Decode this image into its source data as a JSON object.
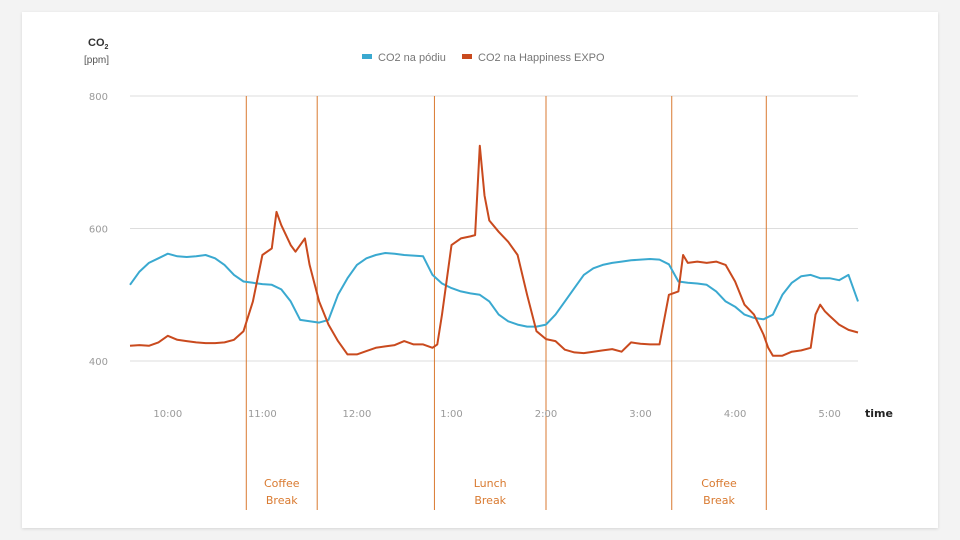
{
  "chart_data": {
    "type": "line",
    "ylabel": "CO",
    "ylabel_sub": "2",
    "yunit": "[ppm]",
    "xlabel": "time",
    "ylim": [
      400,
      800
    ],
    "xlim_hours": [
      9.6,
      17.3
    ],
    "yticks": [
      {
        "value": 400,
        "label": "400"
      },
      {
        "value": 600,
        "label": "600"
      },
      {
        "value": 800,
        "label": "800"
      }
    ],
    "xticks": [
      {
        "value": 10,
        "label": "10:00"
      },
      {
        "value": 11,
        "label": "11:00"
      },
      {
        "value": 12,
        "label": "12:00"
      },
      {
        "value": 13,
        "label": "1:00"
      },
      {
        "value": 14,
        "label": "2:00"
      },
      {
        "value": 15,
        "label": "3:00"
      },
      {
        "value": 16,
        "label": "4:00"
      },
      {
        "value": 17,
        "label": "5:00"
      }
    ],
    "legend_position": "top-center",
    "breaks": [
      {
        "start": 10.83,
        "end": 11.58,
        "line1": "Coffee",
        "line2": "Break"
      },
      {
        "start": 12.82,
        "end": 14.0,
        "line1": "Lunch",
        "line2": "Break"
      },
      {
        "start": 15.33,
        "end": 16.33,
        "line1": "Coffee",
        "line2": "Break"
      }
    ],
    "series": [
      {
        "name": "CO2 na pódiu",
        "color": "#3aa9d0",
        "points": [
          [
            9.6,
            515
          ],
          [
            9.7,
            535
          ],
          [
            9.8,
            548
          ],
          [
            9.9,
            555
          ],
          [
            10.0,
            562
          ],
          [
            10.1,
            558
          ],
          [
            10.2,
            557
          ],
          [
            10.3,
            558
          ],
          [
            10.4,
            560
          ],
          [
            10.5,
            555
          ],
          [
            10.6,
            545
          ],
          [
            10.7,
            530
          ],
          [
            10.8,
            520
          ],
          [
            10.9,
            518
          ],
          [
            11.0,
            516
          ],
          [
            11.1,
            515
          ],
          [
            11.2,
            508
          ],
          [
            11.3,
            490
          ],
          [
            11.4,
            462
          ],
          [
            11.5,
            460
          ],
          [
            11.6,
            458
          ],
          [
            11.7,
            462
          ],
          [
            11.8,
            500
          ],
          [
            11.9,
            525
          ],
          [
            12.0,
            545
          ],
          [
            12.1,
            555
          ],
          [
            12.2,
            560
          ],
          [
            12.3,
            563
          ],
          [
            12.4,
            562
          ],
          [
            12.5,
            560
          ],
          [
            12.7,
            558
          ],
          [
            12.8,
            530
          ],
          [
            12.9,
            517
          ],
          [
            13.0,
            510
          ],
          [
            13.1,
            505
          ],
          [
            13.2,
            502
          ],
          [
            13.3,
            500
          ],
          [
            13.4,
            490
          ],
          [
            13.5,
            470
          ],
          [
            13.6,
            460
          ],
          [
            13.7,
            455
          ],
          [
            13.8,
            452
          ],
          [
            13.9,
            452
          ],
          [
            14.0,
            455
          ],
          [
            14.1,
            470
          ],
          [
            14.2,
            490
          ],
          [
            14.3,
            510
          ],
          [
            14.4,
            530
          ],
          [
            14.5,
            540
          ],
          [
            14.6,
            545
          ],
          [
            14.7,
            548
          ],
          [
            14.8,
            550
          ],
          [
            14.9,
            552
          ],
          [
            15.0,
            553
          ],
          [
            15.1,
            554
          ],
          [
            15.2,
            553
          ],
          [
            15.3,
            546
          ],
          [
            15.4,
            520
          ],
          [
            15.5,
            518
          ],
          [
            15.6,
            517
          ],
          [
            15.7,
            515
          ],
          [
            15.8,
            505
          ],
          [
            15.9,
            490
          ],
          [
            16.0,
            482
          ],
          [
            16.1,
            470
          ],
          [
            16.2,
            465
          ],
          [
            16.3,
            463
          ],
          [
            16.4,
            470
          ],
          [
            16.5,
            500
          ],
          [
            16.6,
            518
          ],
          [
            16.7,
            528
          ],
          [
            16.8,
            530
          ],
          [
            16.9,
            525
          ],
          [
            17.0,
            525
          ],
          [
            17.1,
            522
          ],
          [
            17.2,
            530
          ],
          [
            17.3,
            490
          ]
        ]
      },
      {
        "name": "CO2 na Happiness EXPO",
        "color": "#c94a1e",
        "points": [
          [
            9.6,
            423
          ],
          [
            9.7,
            424
          ],
          [
            9.8,
            423
          ],
          [
            9.9,
            428
          ],
          [
            10.0,
            438
          ],
          [
            10.1,
            432
          ],
          [
            10.2,
            430
          ],
          [
            10.3,
            428
          ],
          [
            10.4,
            427
          ],
          [
            10.5,
            427
          ],
          [
            10.6,
            428
          ],
          [
            10.7,
            432
          ],
          [
            10.8,
            445
          ],
          [
            10.9,
            490
          ],
          [
            11.0,
            560
          ],
          [
            11.1,
            570
          ],
          [
            11.15,
            625
          ],
          [
            11.2,
            605
          ],
          [
            11.3,
            575
          ],
          [
            11.35,
            565
          ],
          [
            11.45,
            585
          ],
          [
            11.5,
            545
          ],
          [
            11.6,
            490
          ],
          [
            11.7,
            455
          ],
          [
            11.8,
            430
          ],
          [
            11.9,
            410
          ],
          [
            12.0,
            410
          ],
          [
            12.1,
            415
          ],
          [
            12.2,
            420
          ],
          [
            12.3,
            422
          ],
          [
            12.4,
            424
          ],
          [
            12.5,
            430
          ],
          [
            12.6,
            425
          ],
          [
            12.7,
            425
          ],
          [
            12.8,
            420
          ],
          [
            12.85,
            425
          ],
          [
            12.9,
            470
          ],
          [
            13.0,
            575
          ],
          [
            13.1,
            585
          ],
          [
            13.2,
            588
          ],
          [
            13.25,
            590
          ],
          [
            13.3,
            725
          ],
          [
            13.35,
            650
          ],
          [
            13.4,
            612
          ],
          [
            13.5,
            595
          ],
          [
            13.6,
            580
          ],
          [
            13.7,
            560
          ],
          [
            13.8,
            500
          ],
          [
            13.9,
            445
          ],
          [
            14.0,
            433
          ],
          [
            14.1,
            430
          ],
          [
            14.2,
            417
          ],
          [
            14.3,
            413
          ],
          [
            14.4,
            412
          ],
          [
            14.5,
            414
          ],
          [
            14.6,
            416
          ],
          [
            14.7,
            418
          ],
          [
            14.8,
            414
          ],
          [
            14.9,
            428
          ],
          [
            15.0,
            426
          ],
          [
            15.1,
            425
          ],
          [
            15.2,
            425
          ],
          [
            15.3,
            500
          ],
          [
            15.4,
            505
          ],
          [
            15.45,
            560
          ],
          [
            15.5,
            548
          ],
          [
            15.6,
            550
          ],
          [
            15.7,
            548
          ],
          [
            15.8,
            550
          ],
          [
            15.9,
            545
          ],
          [
            16.0,
            520
          ],
          [
            16.1,
            485
          ],
          [
            16.2,
            470
          ],
          [
            16.3,
            440
          ],
          [
            16.35,
            420
          ],
          [
            16.4,
            408
          ],
          [
            16.5,
            408
          ],
          [
            16.6,
            414
          ],
          [
            16.7,
            416
          ],
          [
            16.8,
            420
          ],
          [
            16.85,
            470
          ],
          [
            16.9,
            485
          ],
          [
            16.95,
            475
          ],
          [
            17.0,
            468
          ],
          [
            17.1,
            455
          ],
          [
            17.2,
            447
          ],
          [
            17.3,
            443
          ]
        ]
      }
    ]
  }
}
